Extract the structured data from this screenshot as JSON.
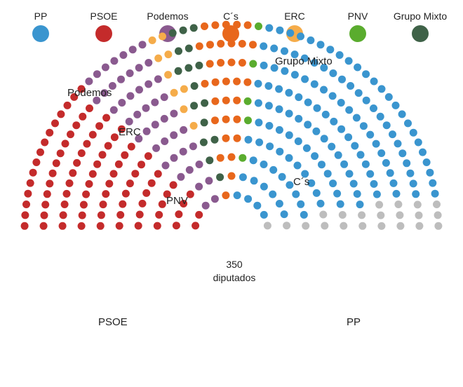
{
  "chart_data": {
    "type": "parliament",
    "total_seats": 350,
    "total_label_number": "350",
    "total_label_unit": "diputados",
    "series": [
      {
        "name": "PP",
        "seats": 137,
        "color": "#3a95cf"
      },
      {
        "name": "PSOE",
        "seats": 85,
        "color": "#c42b2b"
      },
      {
        "name": "Podemos",
        "seats": 45,
        "color": "#8a5a8f"
      },
      {
        "name": "C´s",
        "seats": 32,
        "color": "#e8671c"
      },
      {
        "name": "ERC",
        "seats": 9,
        "color": "#f5ac4a"
      },
      {
        "name": "PNV",
        "seats": 5,
        "color": "#5aac2e"
      },
      {
        "name": "Grupo Mixto",
        "seats": 16,
        "color": "#3f6248"
      },
      {
        "name": "",
        "seats": 21,
        "color": "#bdbdbd"
      }
    ]
  }
}
